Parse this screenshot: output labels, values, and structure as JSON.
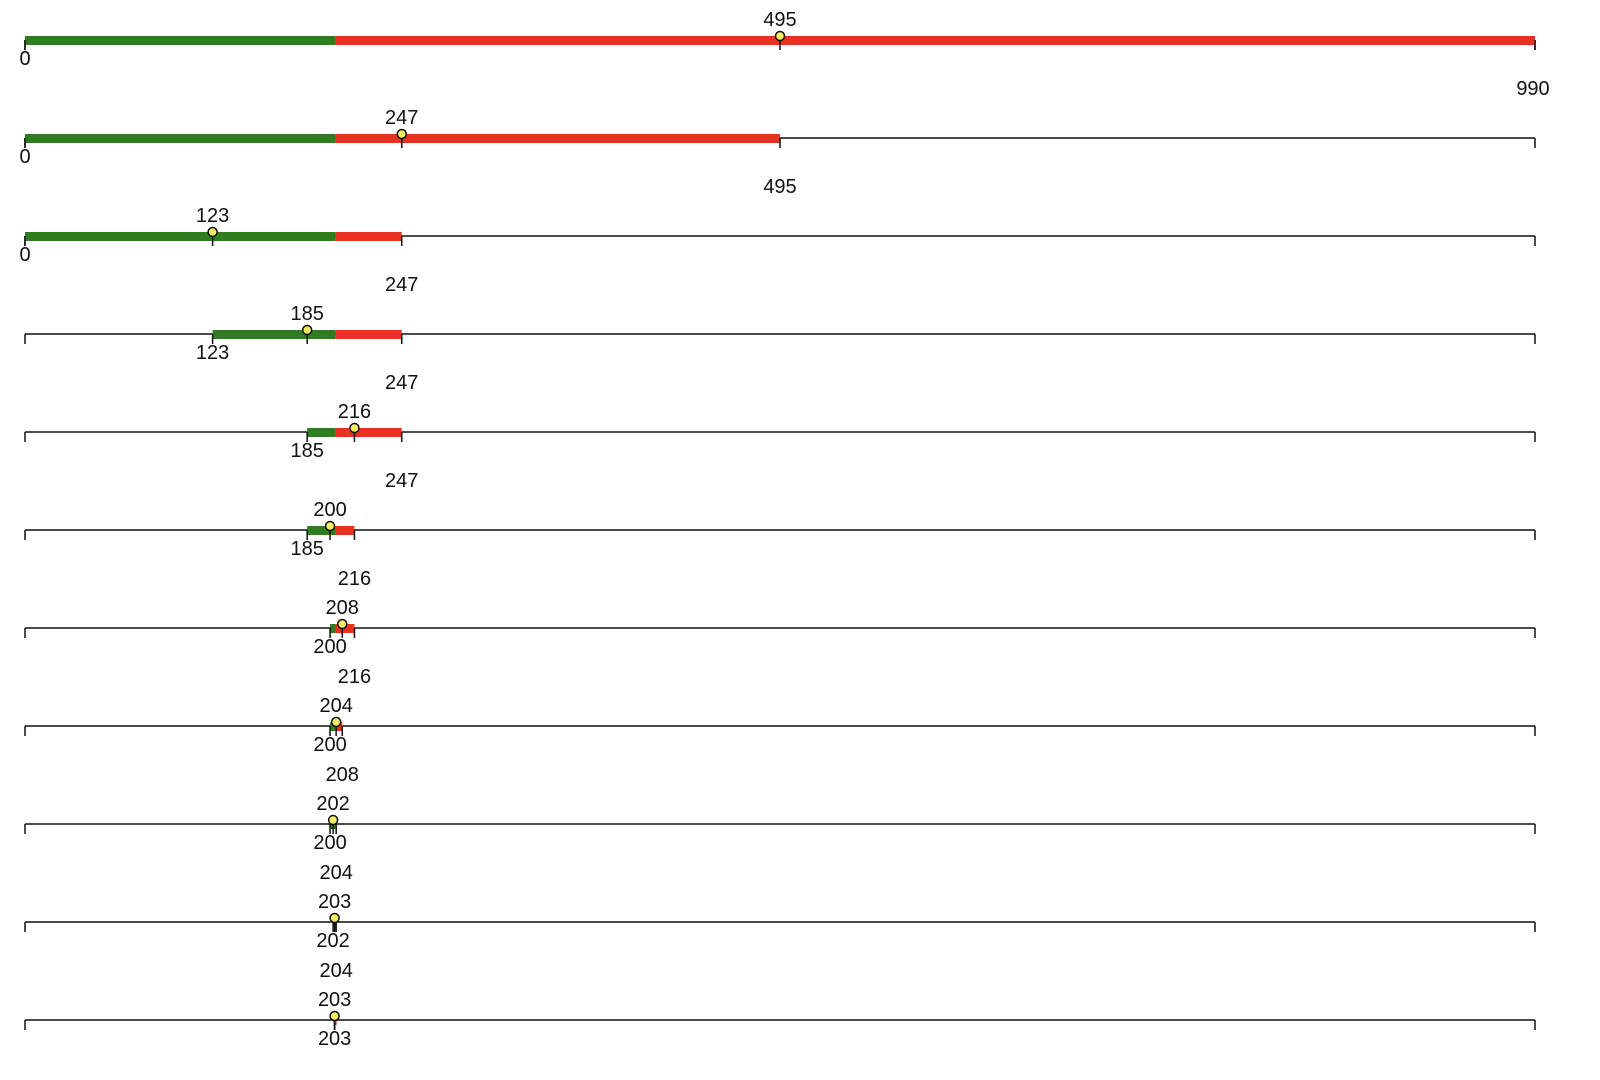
{
  "colors": {
    "below": "#2e7d1f",
    "above": "#e8321f",
    "axis": "#111111",
    "marker_fill": "#f4ef66",
    "marker_stroke": "#111111",
    "background": "#ffffff"
  },
  "chart_data": {
    "type": "binary-search-steps",
    "domain": [
      0,
      990
    ],
    "target": 203,
    "steps": [
      {
        "low": 0,
        "high": 990,
        "mid": 495,
        "low_label": "0",
        "high_label": "990",
        "mid_label": "495"
      },
      {
        "low": 0,
        "high": 495,
        "mid": 247,
        "low_label": "0",
        "high_label": "495",
        "mid_label": "247"
      },
      {
        "low": 0,
        "high": 247,
        "mid": 123,
        "low_label": "0",
        "high_label": "247",
        "mid_label": "123"
      },
      {
        "low": 123,
        "high": 247,
        "mid": 185,
        "low_label": "123",
        "high_label": "247",
        "mid_label": "185"
      },
      {
        "low": 185,
        "high": 247,
        "mid": 216,
        "low_label": "185",
        "high_label": "247",
        "mid_label": "216"
      },
      {
        "low": 185,
        "high": 216,
        "mid": 200,
        "low_label": "185",
        "high_label": "216",
        "mid_label": "200"
      },
      {
        "low": 200,
        "high": 216,
        "mid": 208,
        "low_label": "200",
        "high_label": "216",
        "mid_label": "208"
      },
      {
        "low": 200,
        "high": 208,
        "mid": 204,
        "low_label": "200",
        "high_label": "208",
        "mid_label": "204"
      },
      {
        "low": 200,
        "high": 204,
        "mid": 202,
        "low_label": "200",
        "high_label": "204",
        "mid_label": "202"
      },
      {
        "low": 202,
        "high": 204,
        "mid": 203,
        "low_label": "202",
        "high_label": "204",
        "mid_label": "203"
      },
      {
        "low": 203,
        "high": 203,
        "mid": 203,
        "low_label": "203",
        "high_label": "",
        "mid_label": "203"
      }
    ]
  }
}
